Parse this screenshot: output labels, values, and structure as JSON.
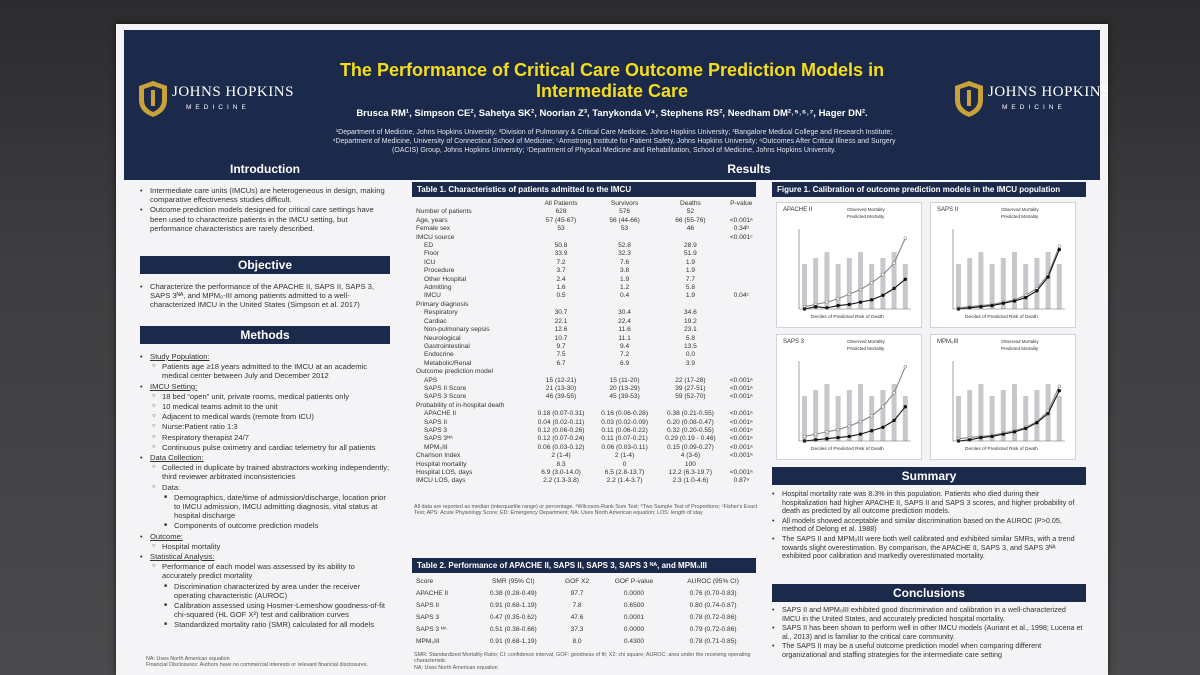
{
  "header": {
    "title_line1": "The Performance of Critical Care Outcome Prediction Models in",
    "title_line2": "Intermediate Care",
    "authors": "Brusca RM¹, Simpson CE², Sahetya SK², Noorian Z³, Tanykonda V⁴, Stephens RS², Needham DM²˒⁵˒⁶˒⁷, Hager DN².",
    "affil_line1": "¹Department of Medicine, Johns Hopkins University; ²Division of Pulmonary & Critical Care Medicine, Johns Hopkins University; ³Bangalore Medical College and Research Institute;",
    "affil_line2": "⁴Department of Medicine, University of Connecticut School of Medicine; ⁵Armstrong Institute for Patient Safety, Johns Hopkins University; ⁶Outcomes After Critical Illness and Surgery",
    "affil_line3": "(OACIS) Group, Johns Hopkins University; ⁷Department of Physical Medicine and Rehabilitation, School of Medicine, Johns Hopkins University.",
    "logo_name": "JOHNS HOPKINS",
    "logo_sub": "MEDICINE"
  },
  "introduction": {
    "heading": "Introduction",
    "bullets": [
      "Intermediate care units (IMCUs) are heterogeneous in design, making comparative effectiveness studies difficult.",
      "Outcome prediction models designed for critical care settings have been used to characterize patients in the IMCU setting, but performance characteristics are rarely described."
    ]
  },
  "objective": {
    "heading": "Objective",
    "bullets": [
      "Characterize the performance of the APACHE II, SAPS II, SAPS 3, SAPS 3ᴺᴬ, and MPM₀-III among patients admitted to a well-characterized IMCU in the United States (Simpson et al. 2017)"
    ]
  },
  "methods": {
    "heading": "Methods",
    "items": [
      {
        "text": "Study Population:",
        "level": 0,
        "u": true
      },
      {
        "text": "Patients age ≥18 years admitted to the IMCU at an academic medical center between July and December 2012",
        "level": 1
      },
      {
        "text": "IMCU Setting:",
        "level": 0,
        "u": true
      },
      {
        "text": "18 bed “open” unit, private rooms, medical patients only",
        "level": 1
      },
      {
        "text": "10 medical teams admit to the unit",
        "level": 1
      },
      {
        "text": "Adjacent to medical wards (remote from ICU)",
        "level": 1
      },
      {
        "text": "Nurse:Patient ratio 1:3",
        "level": 1
      },
      {
        "text": "Respiratory therapist 24/7",
        "level": 1
      },
      {
        "text": "Continuous pulse oximetry and cardiac telemetry for all patients",
        "level": 1
      },
      {
        "text": "Data Collection:",
        "level": 0,
        "u": true
      },
      {
        "text": "Collected in duplicate by trained abstractors working independently; third reviewer arbitrated inconsistencies",
        "level": 1
      },
      {
        "text": "Data:",
        "level": 1
      },
      {
        "text": "Demographics, date/time of admission/discharge, location prior to IMCU admission, IMCU admitting diagnosis, vital status at hospital discharge",
        "level": 2
      },
      {
        "text": "Components of outcome prediction models",
        "level": 2
      },
      {
        "text": "Outcome:",
        "level": 0,
        "u": true
      },
      {
        "text": "Hospital mortality",
        "level": 1
      },
      {
        "text": "Statistical Analysis:",
        "level": 0,
        "u": true
      },
      {
        "text": "Performance of each model was assessed by its ability to accurately predict mortality",
        "level": 1
      },
      {
        "text": "Discrimination characterized by area under the receiver operating characteristic (AUROC)",
        "level": 2
      },
      {
        "text": "Calibration assessed using Hosmer-Lemeshow goodness-of-fit chi-squared (HL GOF X²) test and calibration curves",
        "level": 2
      },
      {
        "text": "Standardized mortality ratio (SMR) calculated for all models",
        "level": 2
      }
    ],
    "footnote1": "NA: Uses North American equation",
    "footnote2": "Financial Disclosures: Authors have no commercial interests or relevant financial disclosures."
  },
  "results": {
    "heading": "Results",
    "table1": {
      "title": "Table 1. Characteristics of patients admitted to the IMCU",
      "columns": [
        "",
        "All Patients",
        "Survivors",
        "Deaths",
        "P-value"
      ],
      "rows": [
        [
          "Number of patients",
          "628",
          "576",
          "52",
          ""
        ],
        [
          "Age, years",
          "57 (45-67)",
          "56 (44-66)",
          "66 (55-76)",
          "<0.001ᵃ"
        ],
        [
          "Female sex",
          "53",
          "53",
          "46",
          "0.34ᵇ"
        ],
        [
          "IMCU source",
          "",
          "",
          "",
          "<0.001ᶜ"
        ],
        [
          "  ED",
          "50.8",
          "52.8",
          "28.9",
          ""
        ],
        [
          "  Floor",
          "33.9",
          "32.3",
          "51.9",
          ""
        ],
        [
          "  ICU",
          "7.2",
          "7.6",
          "1.9",
          ""
        ],
        [
          "  Procedure",
          "3.7",
          "3.8",
          "1.9",
          ""
        ],
        [
          "  Other Hospital",
          "2.4",
          "1.9",
          "7.7",
          ""
        ],
        [
          "  Admitting",
          "1.6",
          "1.2",
          "5.8",
          ""
        ],
        [
          "  IMCU",
          "0.5",
          "0.4",
          "1.9",
          "0.04ᶜ"
        ],
        [
          "Primary diagnosis",
          "",
          "",
          "",
          ""
        ],
        [
          "  Respiratory",
          "30.7",
          "30.4",
          "34.6",
          ""
        ],
        [
          "  Cardiac",
          "22.1",
          "22.4",
          "19.2",
          ""
        ],
        [
          "  Non-pulmonary sepsis",
          "12.6",
          "11.6",
          "23.1",
          ""
        ],
        [
          "  Neurological",
          "10.7",
          "11.1",
          "5.8",
          ""
        ],
        [
          "  Gastrointestinal",
          "9.7",
          "9.4",
          "13.5",
          ""
        ],
        [
          "  Endocrine",
          "7.5",
          "7.2",
          "0.0",
          ""
        ],
        [
          "  Metabolic/Renal",
          "6.7",
          "6.9",
          "3.9",
          ""
        ],
        [
          "Outcome prediction model",
          "",
          "",
          "",
          ""
        ],
        [
          "  APS",
          "15 (12-21)",
          "15 (11-20)",
          "22 (17-28)",
          "<0.001ᵃ"
        ],
        [
          "  SAPS II Score",
          "21 (13-30)",
          "20 (13-29)",
          "39 (27-51)",
          "<0.001ᵃ"
        ],
        [
          "  SAPS 3 Score",
          "46 (39-55)",
          "45 (39-53)",
          "59 (52-70)",
          "<0.001ᵃ"
        ],
        [
          "Probability of in-hospital death",
          "",
          "",
          "",
          ""
        ],
        [
          "  APACHE II",
          "0.18 (0.07-0.31)",
          "0.16 (0.06-0.28)",
          "0.38 (0.21-0.55)",
          "<0.001ᵃ"
        ],
        [
          "  SAPS II",
          "0.04 (0.02-0.11)",
          "0.03 (0.02-0.09)",
          "0.20 (0.08-0.47)",
          "<0.001ᵃ"
        ],
        [
          "  SAPS 3",
          "0.12 (0.06-0.26)",
          "0.11 (0.06-0.22)",
          "0.32 (0.20-0.55)",
          "<0.001ᵃ"
        ],
        [
          "  SAPS 3ᴺᴬ",
          "0.12 (0.07-0.24)",
          "0.11 (0.07-0.21)",
          "0.29 (0.19 - 0.46)",
          "<0.001ᵃ"
        ],
        [
          "  MPM₀III",
          "0.06 (0.03-0.12)",
          "0.06 (0.03-0.11)",
          "0.15 (0.09-0.27)",
          "<0.001ᵃ"
        ],
        [
          "Charlson Index",
          "2 (1-4)",
          "2 (1-4)",
          "4 (3-6)",
          "<0.001ᵃ"
        ],
        [
          "Hospital mortality",
          "8.3",
          "0",
          "100",
          ""
        ],
        [
          "Hospital LOS, days",
          "6.9 (3.0-14.0)",
          "6.5 (2.8-13.7)",
          "12.2 (6.3-19.7)",
          "<0.001ᵃ"
        ],
        [
          "IMCU LOS, days",
          "2.2 (1.3-3.8)",
          "2.2 (1.4-3.7)",
          "2.3 (1.0-4.6)",
          "0.87ᵃ"
        ]
      ],
      "note": "All data are reported as median (interquartile range) or percentage. ᵃWilcoxon-Rank Sum Test; ᵇTwo Sample Test of Proportions; ᶜFisher's Exact Test; APS: Acute Physiology Score; ED: Emergency Department; NA: Uses North American equation; LOS: length of stay"
    },
    "table2": {
      "title": "Table 2. Performance of APACHE II, SAPS II, SAPS 3, SAPS 3 ᴺᴬ, and MPM₀III",
      "columns": [
        "Score",
        "SMR (95% CI)",
        "GOF X2",
        "GOF P-value",
        "AUROC (95% CI)"
      ],
      "rows": [
        [
          "APACHE II",
          "0.38 (0.28-0.49)",
          "97.7",
          "0.0000",
          "0.76 (0.70-0.83)"
        ],
        [
          "SAPS II",
          "0.91 (0.68-1.19)",
          "7.8",
          "0.6500",
          "0.80 (0.74-0.87)"
        ],
        [
          "SAPS 3",
          "0.47 (0.35-0.62)",
          "47.6",
          "0.0001",
          "0.78 (0.72-0.86)"
        ],
        [
          "SAPS 3 ᴺᴬ",
          "0.51 (0.38-0.66)",
          "37.3",
          "0.0000",
          "0.79 (0.72-0.86)"
        ],
        [
          "MPM₀III",
          "0.91 (0.68-1.19)",
          "8.0",
          "0.4300",
          "0.78 (0.71-0.85)"
        ]
      ],
      "note1": "SMR: Standardized Mortality Ratio; CI: confidence interval; GOF: goodness of fit; X2: chi square; AUROC: area under the receiving operating characteristic",
      "note2": "NA: Uses North American equation"
    }
  },
  "figure1": {
    "title": "Figure 1. Calibration of outcome prediction models in the IMCU population",
    "legend_observed": "Observed Mortality",
    "legend_predicted": "Predicted Mortality",
    "xlabel": "Deciles of Predicted Risk of Death",
    "panels": [
      "APACHE II",
      "SAPS II",
      "SAPS 3",
      "MPM₀III"
    ]
  },
  "summary": {
    "heading": "Summary",
    "bullets": [
      "Hospital mortality rate was 8.3% in this population. Patients who died during their hospitalization had higher APACHE II, SAPS II and SAPS 3 scores, and higher probability of death as predicted by all outcome prediction models.",
      "All models showed acceptable and similar discrimination based on the AUROC (P>0.05, method of Delong et al. 1988)",
      "The SAPS II and MPM₀III were both well calibrated and exhibited similar SMRs, with a trend towards slight overestimation. By comparison, the APACHE II, SAPS 3, and SAPS 3ᴺᴬ exhibited poor calibration and markedly overestimated mortality."
    ]
  },
  "conclusions": {
    "heading": "Conclusions",
    "bullets": [
      "SAPS II and MPM₀III exhibited good discrimination and calibration in a well-characterized IMCU in the United States, and accurately predicted hospital mortality.",
      "SAPS II has been shown to perform well in other IMCU models (Auriant et al., 1998; Lucena et al., 2013) and is familiar to the critical care community.",
      "The SAPS II may be a useful outcome prediction model when comparing different organizational and staffing strategies for the intermediate care setting"
    ]
  },
  "colors": {
    "navy": "#1b2a4a",
    "gold": "#f5dd1c",
    "poster_bg": "#f4f4f6"
  }
}
